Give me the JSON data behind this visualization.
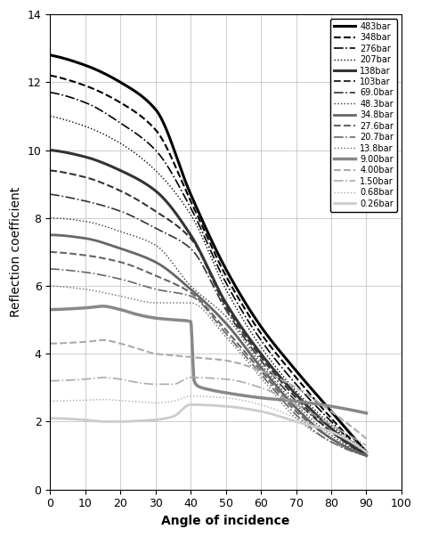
{
  "xlabel": "Angle of incidence",
  "ylabel": "Reflection coefficient",
  "xlim": [
    0,
    100
  ],
  "ylim": [
    0,
    14
  ],
  "xticks": [
    0,
    10,
    20,
    30,
    40,
    50,
    60,
    70,
    80,
    90,
    100
  ],
  "yticks": [
    0,
    2,
    4,
    6,
    8,
    10,
    12,
    14
  ],
  "background_color": "#ffffff",
  "grid_color": "#bbbbbb",
  "legend_fontsize": 7.0,
  "axis_label_fontsize": 10,
  "tick_fontsize": 9,
  "curves": [
    {
      "label": "483bar",
      "color": "#000000",
      "lw": 2.2,
      "ls": "solid",
      "pts_x": [
        0,
        10,
        20,
        30,
        40,
        50,
        60,
        70,
        80,
        90
      ],
      "pts_y": [
        12.8,
        12.5,
        12.0,
        11.2,
        8.7,
        6.5,
        4.8,
        3.5,
        2.3,
        1.1
      ]
    },
    {
      "label": "348bar",
      "color": "#000000",
      "lw": 1.5,
      "ls": "dashed",
      "pts_x": [
        0,
        10,
        20,
        30,
        40,
        50,
        60,
        70,
        80,
        90
      ],
      "pts_y": [
        12.2,
        11.9,
        11.4,
        10.6,
        8.5,
        6.3,
        4.6,
        3.3,
        2.1,
        1.0
      ]
    },
    {
      "label": "276bar",
      "color": "#000000",
      "lw": 1.2,
      "ls": "dashdot",
      "pts_x": [
        0,
        10,
        20,
        30,
        40,
        50,
        60,
        70,
        80,
        90
      ],
      "pts_y": [
        11.7,
        11.4,
        10.8,
        10.0,
        8.3,
        6.1,
        4.4,
        3.1,
        2.0,
        1.0
      ]
    },
    {
      "label": "207bar",
      "color": "#000000",
      "lw": 1.0,
      "ls": "dotted",
      "pts_x": [
        0,
        10,
        20,
        30,
        40,
        50,
        60,
        70,
        80,
        90
      ],
      "pts_y": [
        11.0,
        10.7,
        10.2,
        9.4,
        8.1,
        5.9,
        4.2,
        2.9,
        1.9,
        1.0
      ]
    },
    {
      "label": "138bar",
      "color": "#333333",
      "lw": 2.2,
      "ls": "solid",
      "pts_x": [
        0,
        10,
        20,
        30,
        40,
        50,
        60,
        70,
        80,
        90
      ],
      "pts_y": [
        10.0,
        9.8,
        9.4,
        8.8,
        7.5,
        5.5,
        4.0,
        2.8,
        1.8,
        1.0
      ]
    },
    {
      "label": "103bar",
      "color": "#333333",
      "lw": 1.5,
      "ls": "dashed",
      "pts_x": [
        0,
        10,
        20,
        30,
        40,
        50,
        60,
        70,
        80,
        90
      ],
      "pts_y": [
        9.4,
        9.2,
        8.8,
        8.2,
        7.4,
        5.4,
        3.9,
        2.7,
        1.7,
        1.0
      ]
    },
    {
      "label": "69.0bar",
      "color": "#333333",
      "lw": 1.2,
      "ls": "dashdot",
      "pts_x": [
        0,
        10,
        20,
        30,
        40,
        50,
        60,
        70,
        80,
        90
      ],
      "pts_y": [
        8.7,
        8.5,
        8.2,
        7.7,
        7.1,
        5.3,
        3.8,
        2.6,
        1.7,
        1.0
      ]
    },
    {
      "label": "48.3bar",
      "color": "#333333",
      "lw": 1.0,
      "ls": "dotted",
      "pts_x": [
        0,
        10,
        20,
        30,
        40,
        50,
        60,
        70,
        80,
        90
      ],
      "pts_y": [
        8.0,
        7.9,
        7.6,
        7.2,
        6.0,
        5.1,
        3.7,
        2.5,
        1.6,
        1.0
      ]
    },
    {
      "label": "34.8bar",
      "color": "#666666",
      "lw": 2.0,
      "ls": "solid",
      "pts_x": [
        0,
        10,
        20,
        30,
        40,
        50,
        60,
        70,
        80,
        90
      ],
      "pts_y": [
        7.5,
        7.4,
        7.1,
        6.7,
        5.9,
        4.9,
        3.6,
        2.4,
        1.5,
        1.0
      ]
    },
    {
      "label": "27.6bar",
      "color": "#666666",
      "lw": 1.5,
      "ls": "dashed",
      "pts_x": [
        0,
        10,
        20,
        30,
        40,
        50,
        60,
        70,
        80,
        90
      ],
      "pts_y": [
        7.0,
        6.9,
        6.7,
        6.3,
        5.8,
        4.7,
        3.5,
        2.3,
        1.5,
        1.0
      ]
    },
    {
      "label": "20.7bar",
      "color": "#666666",
      "lw": 1.2,
      "ls": "dashdot",
      "pts_x": [
        0,
        10,
        20,
        30,
        40,
        50,
        60,
        70,
        80,
        90
      ],
      "pts_y": [
        6.5,
        6.4,
        6.2,
        5.9,
        5.7,
        4.6,
        3.4,
        2.2,
        1.4,
        1.0
      ]
    },
    {
      "label": "13.8bar",
      "color": "#666666",
      "lw": 1.0,
      "ls": "dotted",
      "pts_x": [
        0,
        10,
        20,
        30,
        40,
        50,
        60,
        70,
        80,
        90
      ],
      "pts_y": [
        6.0,
        5.9,
        5.7,
        5.5,
        5.5,
        4.5,
        3.3,
        2.1,
        1.4,
        1.0
      ]
    },
    {
      "label": "9.00bar",
      "color": "#888888",
      "lw": 2.5,
      "ls": "solid",
      "pts_x": [
        0,
        10,
        15,
        20,
        25,
        30,
        35,
        40,
        41,
        42,
        45,
        50,
        60,
        70,
        80,
        90
      ],
      "pts_y": [
        5.3,
        5.35,
        5.4,
        5.3,
        5.15,
        5.05,
        5.0,
        4.95,
        3.2,
        3.05,
        2.95,
        2.85,
        2.7,
        2.6,
        2.45,
        2.25
      ],
      "sharp_drop": true
    },
    {
      "label": "4.00bar",
      "color": "#aaaaaa",
      "lw": 1.5,
      "ls": "dashed",
      "pts_x": [
        0,
        10,
        15,
        20,
        25,
        30,
        35,
        40,
        50,
        60,
        70,
        80,
        90
      ],
      "pts_y": [
        4.3,
        4.35,
        4.4,
        4.3,
        4.15,
        4.0,
        3.95,
        3.9,
        3.8,
        3.5,
        3.0,
        2.3,
        1.5
      ]
    },
    {
      "label": "1.50bar",
      "color": "#aaaaaa",
      "lw": 1.2,
      "ls": "dashdot",
      "pts_x": [
        0,
        10,
        15,
        20,
        25,
        30,
        35,
        40,
        50,
        60,
        70,
        80,
        90
      ],
      "pts_y": [
        3.2,
        3.25,
        3.3,
        3.25,
        3.15,
        3.1,
        3.1,
        3.3,
        3.25,
        3.0,
        2.5,
        1.9,
        1.3
      ]
    },
    {
      "label": "0.68bar",
      "color": "#aaaaaa",
      "lw": 1.0,
      "ls": "dotted",
      "pts_x": [
        0,
        10,
        15,
        20,
        25,
        30,
        35,
        40,
        50,
        60,
        70,
        80,
        90
      ],
      "pts_y": [
        2.6,
        2.63,
        2.65,
        2.62,
        2.58,
        2.55,
        2.6,
        2.75,
        2.7,
        2.5,
        2.1,
        1.7,
        1.2
      ]
    },
    {
      "label": "0.26bar",
      "color": "#cccccc",
      "lw": 2.0,
      "ls": "solid",
      "pts_x": [
        0,
        10,
        15,
        20,
        25,
        30,
        35,
        40,
        50,
        60,
        70,
        80,
        90
      ],
      "pts_y": [
        2.1,
        2.05,
        2.0,
        2.0,
        2.02,
        2.05,
        2.15,
        2.5,
        2.45,
        2.3,
        2.0,
        1.7,
        1.1
      ]
    }
  ]
}
